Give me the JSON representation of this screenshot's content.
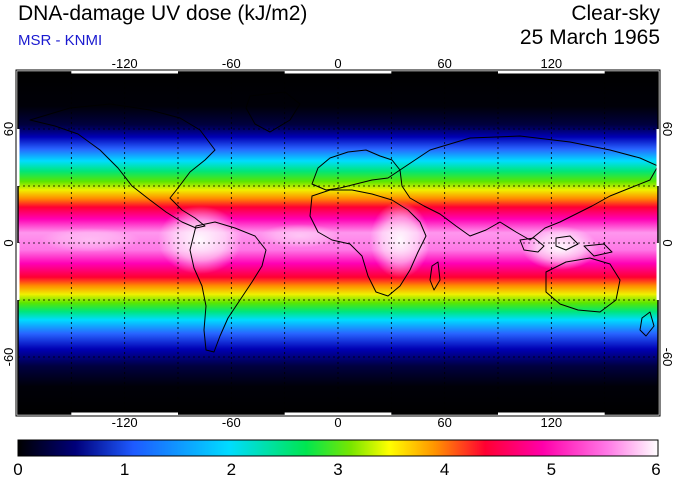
{
  "header": {
    "title": "DNA-damage UV dose (kJ/m2)",
    "credit": "MSR - KNMI",
    "sky_condition": "Clear-sky",
    "date": "25 March 1965"
  },
  "map": {
    "projection": "equirectangular",
    "lon_range": [
      -180,
      180
    ],
    "lat_range": [
      -90,
      90
    ],
    "gridlines": "dashed, every 30 degrees",
    "lon_ticks": [
      "-120",
      "-60",
      "0",
      "60",
      "120"
    ],
    "lat_ticks": [
      "60",
      "0",
      "-60"
    ]
  },
  "colorbar": {
    "range": [
      0,
      6
    ],
    "labels": [
      "0",
      "1",
      "2",
      "3",
      "4",
      "5",
      "6"
    ],
    "colors": [
      "#000000",
      "#0000a0",
      "#1e5aff",
      "#00dcff",
      "#00e650",
      "#78e600",
      "#ffff00",
      "#ff9600",
      "#ff0032",
      "#ff00aa",
      "#ff78e6",
      "#ffffff"
    ]
  }
}
